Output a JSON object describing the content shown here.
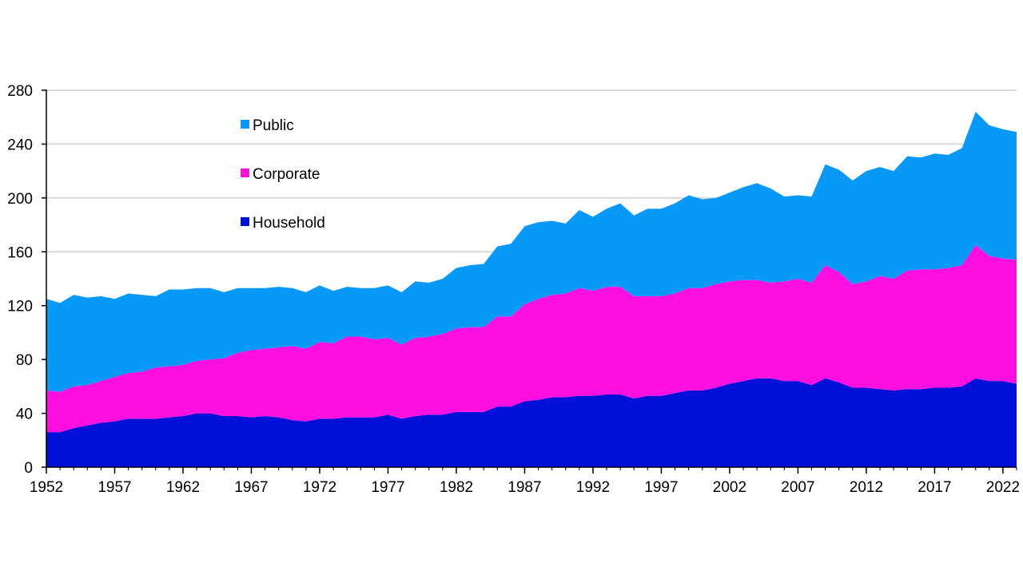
{
  "chart_data": {
    "type": "area",
    "stacked": true,
    "title": "",
    "xlabel": "",
    "ylabel": "",
    "ylim": [
      0,
      280
    ],
    "yticks": [
      0,
      40,
      80,
      120,
      160,
      200,
      240,
      280
    ],
    "xticks": [
      1952,
      1957,
      1962,
      1967,
      1972,
      1977,
      1982,
      1987,
      1992,
      1997,
      2002,
      2007,
      2012,
      2017,
      2022
    ],
    "xticklabels": [
      "1952",
      "1957",
      "1962",
      "1967",
      "1972",
      "1977",
      "1982",
      "1987",
      "1992",
      "1997",
      "2002",
      "2007",
      "2012",
      "2017",
      "2022"
    ],
    "yticklabels": [
      "0",
      "40",
      "80",
      "120",
      "160",
      "200",
      "240",
      "280"
    ],
    "grid": true,
    "legend_position": "upper-left-inside",
    "x": [
      1952,
      1953,
      1954,
      1955,
      1956,
      1957,
      1958,
      1959,
      1960,
      1961,
      1962,
      1963,
      1964,
      1965,
      1966,
      1967,
      1968,
      1969,
      1970,
      1971,
      1972,
      1973,
      1974,
      1975,
      1976,
      1977,
      1978,
      1979,
      1980,
      1981,
      1982,
      1983,
      1984,
      1985,
      1986,
      1987,
      1988,
      1989,
      1990,
      1991,
      1992,
      1993,
      1994,
      1995,
      1996,
      1997,
      1998,
      1999,
      2000,
      2001,
      2002,
      2003,
      2004,
      2005,
      2006,
      2007,
      2008,
      2009,
      2010,
      2011,
      2012,
      2013,
      2014,
      2015,
      2016,
      2017,
      2018,
      2019,
      2020,
      2021,
      2022,
      2023
    ],
    "series": [
      {
        "name": "Household",
        "color": "#0010d8",
        "values": [
          26,
          26,
          29,
          31,
          33,
          34,
          36,
          36,
          36,
          37,
          38,
          40,
          40,
          38,
          38,
          37,
          38,
          37,
          35,
          34,
          36,
          36,
          37,
          37,
          37,
          39,
          36,
          38,
          39,
          39,
          41,
          41,
          41,
          45,
          45,
          49,
          50,
          52,
          52,
          53,
          53,
          54,
          54,
          51,
          53,
          53,
          55,
          57,
          57,
          59,
          62,
          64,
          66,
          66,
          64,
          64,
          61,
          66,
          63,
          59,
          59,
          58,
          57,
          58,
          58,
          59,
          59,
          60,
          66,
          64,
          64,
          62
        ]
      },
      {
        "name": "Corporate",
        "color": "#ff10e0",
        "values": [
          31,
          30,
          31,
          30,
          31,
          33,
          34,
          35,
          38,
          38,
          38,
          39,
          40,
          43,
          47,
          50,
          50,
          52,
          55,
          54,
          57,
          56,
          60,
          60,
          58,
          57,
          55,
          58,
          58,
          60,
          62,
          63,
          63,
          67,
          67,
          72,
          75,
          76,
          77,
          80,
          78,
          80,
          80,
          76,
          74,
          74,
          74,
          76,
          76,
          77,
          76,
          75,
          73,
          71,
          74,
          76,
          76,
          84,
          82,
          77,
          79,
          84,
          83,
          88,
          89,
          88,
          89,
          90,
          99,
          93,
          91,
          92
        ]
      },
      {
        "name": "Public",
        "color": "#0898f8",
        "values": [
          68,
          66,
          68,
          65,
          63,
          58,
          59,
          57,
          53,
          57,
          56,
          54,
          53,
          49,
          48,
          46,
          45,
          45,
          43,
          42,
          42,
          39,
          37,
          36,
          38,
          39,
          39,
          42,
          40,
          41,
          45,
          46,
          47,
          52,
          54,
          58,
          57,
          55,
          52,
          58,
          55,
          58,
          62,
          60,
          65,
          65,
          67,
          69,
          66,
          64,
          66,
          69,
          72,
          70,
          63,
          62,
          64,
          75,
          76,
          77,
          82,
          81,
          80,
          85,
          83,
          86,
          84,
          87,
          99,
          97,
          96,
          95
        ]
      }
    ]
  }
}
